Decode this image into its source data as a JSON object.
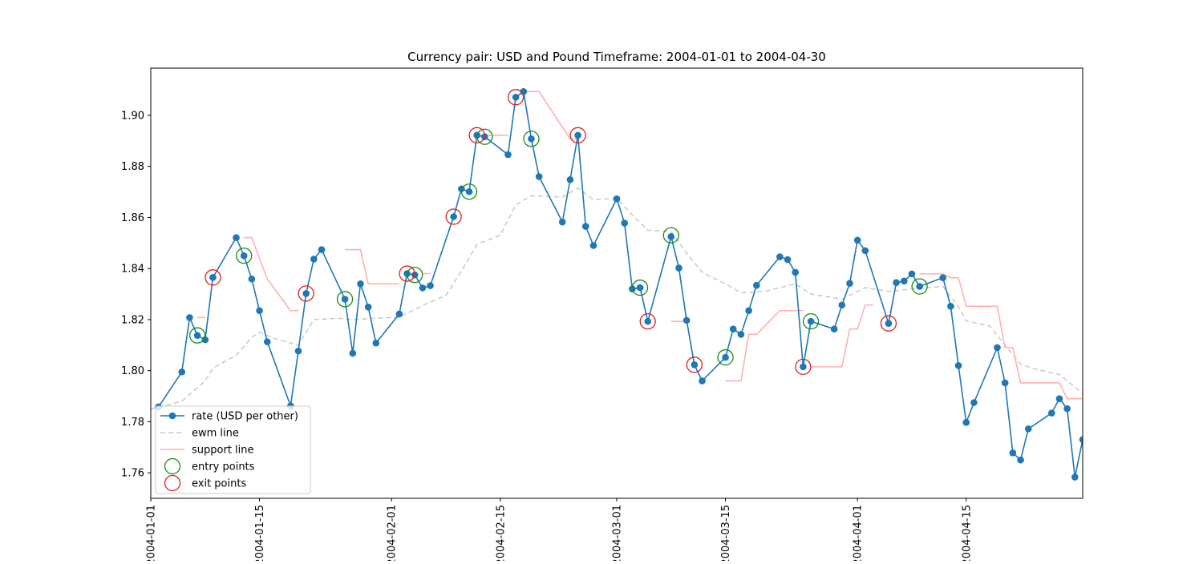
{
  "chart_data": {
    "type": "line",
    "title": "Currency pair: USD and Pound  Timeframe: 2004-01-01 to 2004-04-30",
    "xlabel": "",
    "ylabel": "",
    "xlim": [
      "2004-01-01",
      "2004-04-30"
    ],
    "ylim": [
      1.75,
      1.9185
    ],
    "x_ticks": [
      "2004-01-01",
      "2004-01-15",
      "2004-02-01",
      "2004-02-15",
      "2004-03-01",
      "2004-03-15",
      "2004-04-01",
      "2004-04-15"
    ],
    "y_ticks": [
      1.76,
      1.78,
      1.8,
      1.82,
      1.84,
      1.86,
      1.88,
      1.9
    ],
    "grid": false,
    "legend_position": "bottom-left",
    "colors": {
      "rate": "#1f77b4",
      "ewm": "#c8c8c8",
      "support": "#ffb0b0",
      "entry": "#1a8c1a",
      "exit": "#e02020"
    },
    "series": [
      {
        "name": "rate (USD per other)",
        "style": "line-marker",
        "points": [
          [
            "2004-01-02",
            1.7858
          ],
          [
            "2004-01-05",
            1.7995
          ],
          [
            "2004-01-06",
            1.8208
          ],
          [
            "2004-01-07",
            1.8138
          ],
          [
            "2004-01-08",
            1.8121
          ],
          [
            "2004-01-09",
            1.8365
          ],
          [
            "2004-01-12",
            1.8521
          ],
          [
            "2004-01-13",
            1.845
          ],
          [
            "2004-01-14",
            1.8359
          ],
          [
            "2004-01-15",
            1.8235
          ],
          [
            "2004-01-16",
            1.8113
          ],
          [
            "2004-01-19",
            1.7862
          ],
          [
            "2004-01-20",
            1.8077
          ],
          [
            "2004-01-21",
            1.8302
          ],
          [
            "2004-01-22",
            1.8437
          ],
          [
            "2004-01-23",
            1.8474
          ],
          [
            "2004-01-26",
            1.828
          ],
          [
            "2004-01-27",
            1.8068
          ],
          [
            "2004-01-28",
            1.834
          ],
          [
            "2004-01-29",
            1.8249
          ],
          [
            "2004-01-30",
            1.8108
          ],
          [
            "2004-02-02",
            1.8222
          ],
          [
            "2004-02-03",
            1.838
          ],
          [
            "2004-02-04",
            1.8375
          ],
          [
            "2004-02-05",
            1.8324
          ],
          [
            "2004-02-06",
            1.8333
          ],
          [
            "2004-02-09",
            1.8603
          ],
          [
            "2004-02-10",
            1.8712
          ],
          [
            "2004-02-11",
            1.8701
          ],
          [
            "2004-02-12",
            1.8922
          ],
          [
            "2004-02-13",
            1.8916
          ],
          [
            "2004-02-16",
            1.8846
          ],
          [
            "2004-02-17",
            1.9071
          ],
          [
            "2004-02-18",
            1.9093
          ],
          [
            "2004-02-19",
            1.8908
          ],
          [
            "2004-02-20",
            1.876
          ],
          [
            "2004-02-23",
            1.8582
          ],
          [
            "2004-02-24",
            1.8748
          ],
          [
            "2004-02-25",
            1.8922
          ],
          [
            "2004-02-26",
            1.8565
          ],
          [
            "2004-02-27",
            1.849
          ],
          [
            "2004-03-01",
            1.8673
          ],
          [
            "2004-03-02",
            1.8578
          ],
          [
            "2004-03-03",
            1.832
          ],
          [
            "2004-03-04",
            1.8325
          ],
          [
            "2004-03-05",
            1.8193
          ],
          [
            "2004-03-08",
            1.8525
          ],
          [
            "2004-03-09",
            1.8402
          ],
          [
            "2004-03-10",
            1.8197
          ],
          [
            "2004-03-11",
            1.8023
          ],
          [
            "2004-03-12",
            1.796
          ],
          [
            "2004-03-15",
            1.8052
          ],
          [
            "2004-03-16",
            1.8163
          ],
          [
            "2004-03-17",
            1.8142
          ],
          [
            "2004-03-18",
            1.8235
          ],
          [
            "2004-03-19",
            1.8334
          ],
          [
            "2004-03-22",
            1.8446
          ],
          [
            "2004-03-23",
            1.8435
          ],
          [
            "2004-03-24",
            1.8385
          ],
          [
            "2004-03-25",
            1.8015
          ],
          [
            "2004-03-26",
            1.8193
          ],
          [
            "2004-03-29",
            1.8163
          ],
          [
            "2004-03-30",
            1.8257
          ],
          [
            "2004-03-31",
            1.8342
          ],
          [
            "2004-04-01",
            1.8511
          ],
          [
            "2004-04-02",
            1.847
          ],
          [
            "2004-04-05",
            1.8185
          ],
          [
            "2004-04-06",
            1.8345
          ],
          [
            "2004-04-07",
            1.8351
          ],
          [
            "2004-04-08",
            1.8379
          ],
          [
            "2004-04-09",
            1.833
          ],
          [
            "2004-04-12",
            1.8364
          ],
          [
            "2004-04-13",
            1.8252
          ],
          [
            "2004-04-14",
            1.802
          ],
          [
            "2004-04-15",
            1.7797
          ],
          [
            "2004-04-16",
            1.7875
          ],
          [
            "2004-04-19",
            1.809
          ],
          [
            "2004-04-20",
            1.7952
          ],
          [
            "2004-04-21",
            1.7678
          ],
          [
            "2004-04-22",
            1.765
          ],
          [
            "2004-04-23",
            1.7772
          ],
          [
            "2004-04-26",
            1.7834
          ],
          [
            "2004-04-27",
            1.789
          ],
          [
            "2004-04-28",
            1.7851
          ],
          [
            "2004-04-29",
            1.7583
          ],
          [
            "2004-04-30",
            1.773
          ]
        ]
      },
      {
        "name": "ewm line",
        "style": "dashed",
        "points": [
          [
            "2004-01-01",
            1.785
          ],
          [
            "2004-01-05",
            1.788
          ],
          [
            "2004-01-08",
            1.796
          ],
          [
            "2004-01-09",
            1.801
          ],
          [
            "2004-01-12",
            1.806
          ],
          [
            "2004-01-14",
            1.813
          ],
          [
            "2004-01-15",
            1.815
          ],
          [
            "2004-01-17",
            1.8125
          ],
          [
            "2004-01-20",
            1.81
          ],
          [
            "2004-01-22",
            1.82
          ],
          [
            "2004-01-25",
            1.8205
          ],
          [
            "2004-01-27",
            1.82
          ],
          [
            "2004-01-30",
            1.8205
          ],
          [
            "2004-02-02",
            1.821
          ],
          [
            "2004-02-05",
            1.8255
          ],
          [
            "2004-02-08",
            1.8295
          ],
          [
            "2004-02-10",
            1.839
          ],
          [
            "2004-02-12",
            1.8495
          ],
          [
            "2004-02-15",
            1.853
          ],
          [
            "2004-02-17",
            1.865
          ],
          [
            "2004-02-19",
            1.8685
          ],
          [
            "2004-02-23",
            1.868
          ],
          [
            "2004-02-25",
            1.8715
          ],
          [
            "2004-02-27",
            1.867
          ],
          [
            "2004-03-01",
            1.8675
          ],
          [
            "2004-03-03",
            1.861
          ],
          [
            "2004-03-05",
            1.855
          ],
          [
            "2004-03-08",
            1.8545
          ],
          [
            "2004-03-10",
            1.846
          ],
          [
            "2004-03-12",
            1.8385
          ],
          [
            "2004-03-15",
            1.834
          ],
          [
            "2004-03-17",
            1.8305
          ],
          [
            "2004-03-20",
            1.831
          ],
          [
            "2004-03-24",
            1.834
          ],
          [
            "2004-03-26",
            1.83
          ],
          [
            "2004-03-30",
            1.828
          ],
          [
            "2004-04-01",
            1.831
          ],
          [
            "2004-04-02",
            1.8325
          ],
          [
            "2004-04-05",
            1.831
          ],
          [
            "2004-04-08",
            1.832
          ],
          [
            "2004-04-12",
            1.833
          ],
          [
            "2004-04-14",
            1.825
          ],
          [
            "2004-04-15",
            1.8195
          ],
          [
            "2004-04-18",
            1.8175
          ],
          [
            "2004-04-20",
            1.81
          ],
          [
            "2004-04-22",
            1.8025
          ],
          [
            "2004-04-24",
            1.8005
          ],
          [
            "2004-04-27",
            1.7985
          ],
          [
            "2004-04-30",
            1.791
          ]
        ]
      },
      {
        "name": "support line",
        "style": "solid",
        "segments": [
          [
            [
              "2004-01-07",
              1.8208
            ],
            [
              "2004-01-08",
              1.8208
            ]
          ],
          [
            [
              "2004-01-13",
              1.8521
            ],
            [
              "2004-01-14",
              1.8521
            ],
            [
              "2004-01-16",
              1.8359
            ],
            [
              "2004-01-19",
              1.8235
            ],
            [
              "2004-01-20",
              1.8235
            ]
          ],
          [
            [
              "2004-01-26",
              1.8474
            ],
            [
              "2004-01-28",
              1.8474
            ],
            [
              "2004-01-29",
              1.834
            ],
            [
              "2004-02-02",
              1.834
            ]
          ],
          [
            [
              "2004-02-05",
              1.838
            ],
            [
              "2004-02-06",
              1.838
            ]
          ],
          [
            [
              "2004-02-12",
              1.8922
            ],
            [
              "2004-02-16",
              1.8922
            ]
          ],
          [
            [
              "2004-02-18",
              1.9093
            ],
            [
              "2004-02-20",
              1.9093
            ],
            [
              "2004-02-24",
              1.8908
            ],
            [
              "2004-02-25",
              1.8908
            ]
          ],
          [
            [
              "2004-03-08",
              1.8193
            ],
            [
              "2004-03-10",
              1.8193
            ]
          ],
          [
            [
              "2004-03-15",
              1.796
            ],
            [
              "2004-03-17",
              1.796
            ],
            [
              "2004-03-18",
              1.8142
            ],
            [
              "2004-03-19",
              1.8142
            ],
            [
              "2004-03-22",
              1.8235
            ],
            [
              "2004-03-25",
              1.8235
            ]
          ],
          [
            [
              "2004-03-26",
              1.8015
            ],
            [
              "2004-03-30",
              1.8015
            ],
            [
              "2004-03-31",
              1.8163
            ],
            [
              "2004-04-01",
              1.8163
            ],
            [
              "2004-04-02",
              1.8257
            ],
            [
              "2004-04-03",
              1.8257
            ]
          ],
          [
            [
              "2004-04-09",
              1.8379
            ],
            [
              "2004-04-12",
              1.8379
            ],
            [
              "2004-04-13",
              1.8364
            ],
            [
              "2004-04-14",
              1.8364
            ],
            [
              "2004-04-15",
              1.8252
            ],
            [
              "2004-04-19",
              1.8252
            ],
            [
              "2004-04-20",
              1.809
            ],
            [
              "2004-04-21",
              1.809
            ],
            [
              "2004-04-22",
              1.7952
            ],
            [
              "2004-04-27",
              1.7952
            ],
            [
              "2004-04-28",
              1.789
            ],
            [
              "2004-04-30",
              1.789
            ]
          ]
        ]
      },
      {
        "name": "entry points",
        "style": "open-circle",
        "points": [
          [
            "2004-01-07",
            1.8138
          ],
          [
            "2004-01-13",
            1.845
          ],
          [
            "2004-01-26",
            1.828
          ],
          [
            "2004-02-04",
            1.8375
          ],
          [
            "2004-02-11",
            1.8701
          ],
          [
            "2004-02-13",
            1.8916
          ],
          [
            "2004-02-19",
            1.8908
          ],
          [
            "2004-03-04",
            1.8325
          ],
          [
            "2004-03-08",
            1.853
          ],
          [
            "2004-03-15",
            1.8052
          ],
          [
            "2004-03-26",
            1.8193
          ],
          [
            "2004-04-09",
            1.833
          ]
        ]
      },
      {
        "name": "exit points",
        "style": "open-circle",
        "points": [
          [
            "2004-01-09",
            1.8365
          ],
          [
            "2004-01-21",
            1.8302
          ],
          [
            "2004-02-03",
            1.838
          ],
          [
            "2004-02-09",
            1.8603
          ],
          [
            "2004-02-12",
            1.8922
          ],
          [
            "2004-02-17",
            1.9071
          ],
          [
            "2004-02-25",
            1.8922
          ],
          [
            "2004-03-05",
            1.8193
          ],
          [
            "2004-03-11",
            1.8023
          ],
          [
            "2004-03-25",
            1.8015
          ],
          [
            "2004-04-05",
            1.8185
          ]
        ]
      }
    ]
  }
}
